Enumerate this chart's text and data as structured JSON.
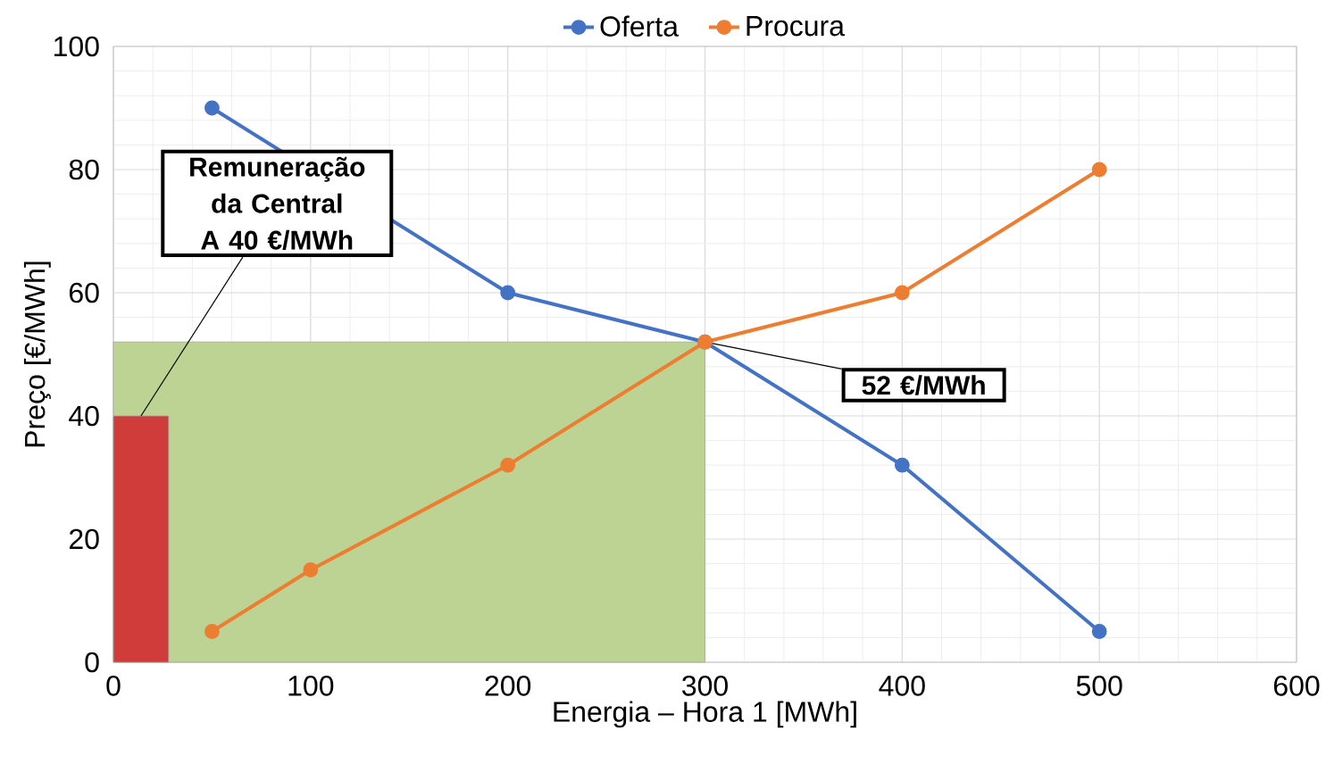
{
  "chart_data": {
    "type": "line",
    "xlabel": "Energia – Hora 1 [MWh]",
    "ylabel": "Preço [€/MWh]",
    "series": [
      {
        "type": "area",
        "color": "#bcd393",
        "marker": "none",
        "x": [
          0,
          300
        ],
        "values": [
          52,
          52
        ]
      },
      {
        "type": "area",
        "color": "#d03c3a",
        "marker": "none",
        "x": [
          0,
          28
        ],
        "values": [
          40,
          40
        ]
      },
      {
        "name": "Oferta",
        "color": "#4472c4",
        "x": [
          50,
          200,
          300,
          400,
          500
        ],
        "values": [
          90,
          60,
          52,
          32,
          5
        ]
      },
      {
        "name": "Procura",
        "color": "#ed7d31",
        "x": [
          50,
          100,
          200,
          300,
          400,
          500
        ],
        "values": [
          5,
          15,
          32,
          52,
          60,
          80
        ]
      }
    ],
    "xlim": [
      0,
      600
    ],
    "xticks": [
      0,
      100,
      200,
      300,
      400,
      500,
      600
    ],
    "ylim": [
      0,
      100
    ],
    "yticks": [
      0,
      20,
      40,
      60,
      80,
      100
    ],
    "grid": true,
    "legend": "top",
    "marker": "circle",
    "line_style": "solid",
    "annotations": [
      {
        "text": "**Remuneração da Central A 40 €/MWh**",
        "x": 14,
        "y": 40
      },
      {
        "text": "**52 €/MWh**",
        "x": 300,
        "y": 52
      }
    ]
  }
}
